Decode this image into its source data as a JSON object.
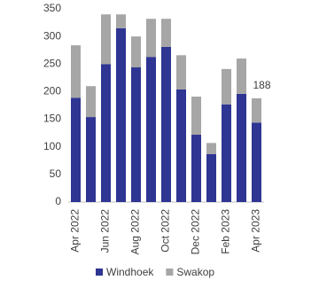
{
  "chart_data": {
    "type": "stacked-bar",
    "categories": [
      "Apr 2022",
      null,
      "Jun 2022",
      null,
      "Aug 2022",
      null,
      "Oct 2022",
      null,
      "Dec 2022",
      null,
      "Feb 2023",
      null,
      "Apr 2023"
    ],
    "series": [
      {
        "name": "Windhoek",
        "color": "#2e3592",
        "values": [
          189,
          154,
          250,
          315,
          244,
          263,
          281,
          204,
          122,
          87,
          177,
          196,
          144
        ]
      },
      {
        "name": "Swakop",
        "color": "#a6a6a6",
        "values": [
          95,
          56,
          90,
          25,
          56,
          69,
          51,
          62,
          69,
          20,
          64,
          64,
          44
        ]
      }
    ],
    "annotations": [
      {
        "text": "188"
      }
    ],
    "ylim": [
      0,
      350
    ],
    "yticks": [
      0,
      50,
      100,
      150,
      200,
      250,
      300,
      350
    ],
    "grid": false,
    "legend": "bottom"
  }
}
